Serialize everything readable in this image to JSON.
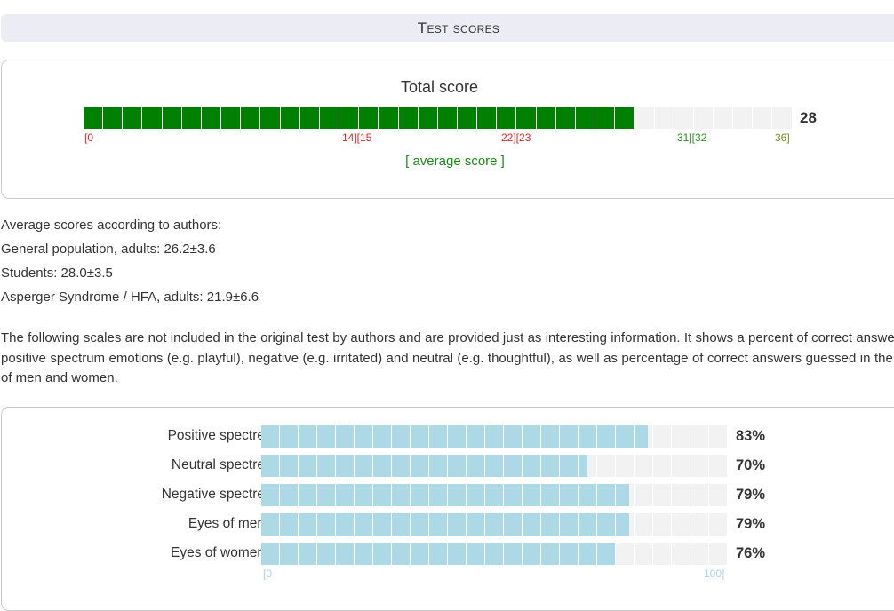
{
  "header": {
    "title": "Test scores"
  },
  "total_score": {
    "title": "Total score",
    "value": 28,
    "value_label": "28",
    "max": 36,
    "fill_color": "#008000",
    "empty_color": "#f2f2f2",
    "ranges": [
      {
        "text": "[0",
        "color": "#d9262c"
      },
      {
        "text": "14][15",
        "color": "#d9262c"
      },
      {
        "text": "22][23",
        "color": "#d9262c"
      },
      {
        "text": "31][32",
        "color": "#2e8b20"
      },
      {
        "text": "36]",
        "color": "#7a8a1e"
      }
    ],
    "average_label": "[ average score ]"
  },
  "averages": {
    "heading": "Average scores according to authors:",
    "lines": [
      "General population, adults: 26.2±3.6",
      "Students: 28.0±3.5",
      "Asperger Syndrome / HFA, adults: 21.9±6.6"
    ]
  },
  "info_paragraph": "The following scales are not included in the original test by authors and are provided just as interesting information. It shows a percent of correct answers for positive spectrum emotions (e.g. playful), negative (e.g. irritated) and neutral (e.g. thoughtful), as well as percentage of correct answers guessed in the eyes of men and women.",
  "scales": {
    "fill_color": "#add8e6",
    "empty_color": "#f2f2f2",
    "axis_min": "[0",
    "axis_max": "100]",
    "items": [
      {
        "label": "Positive spectre",
        "percent": 83,
        "value_label": "83%"
      },
      {
        "label": "Neutral spectre",
        "percent": 70,
        "value_label": "70%"
      },
      {
        "label": "Negative spectre",
        "percent": 79,
        "value_label": "79%"
      },
      {
        "label": "Eyes of men",
        "percent": 79,
        "value_label": "79%"
      },
      {
        "label": "Eyes of women",
        "percent": 76,
        "value_label": "76%"
      }
    ]
  }
}
